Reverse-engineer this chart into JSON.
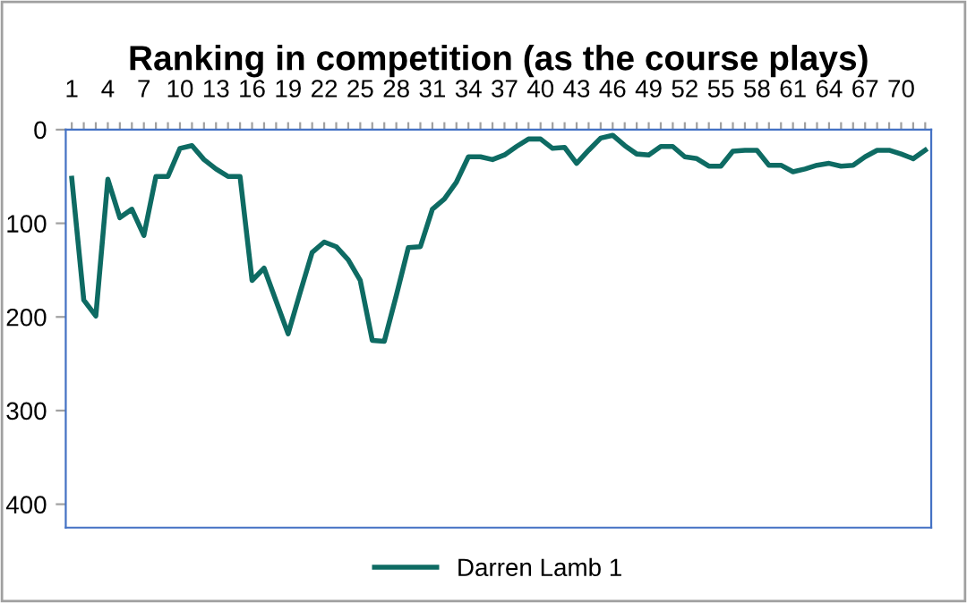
{
  "chart_data": {
    "type": "line",
    "title": "Ranking in competition (as the course plays)",
    "categories": [
      "1",
      null,
      null,
      "4",
      null,
      null,
      "7",
      null,
      null,
      "10",
      null,
      null,
      "13",
      null,
      null,
      "16",
      null,
      null,
      "19",
      null,
      null,
      "22",
      null,
      null,
      "25",
      null,
      null,
      "28",
      null,
      null,
      "31",
      null,
      null,
      "34",
      null,
      null,
      "37",
      null,
      null,
      "40",
      null,
      null,
      "43",
      null,
      null,
      "46",
      null,
      null,
      "49",
      null,
      null,
      "52",
      null,
      null,
      "55",
      null,
      null,
      "58",
      null,
      null,
      "61",
      null,
      null,
      "64",
      null,
      null,
      "67",
      null,
      null,
      "70",
      null,
      null
    ],
    "series": [
      {
        "name": "Darren Lamb 1",
        "color": "#0e6b63",
        "values": [
          52,
          182,
          199,
          53,
          94,
          85,
          113,
          50,
          50,
          20,
          17,
          32,
          42,
          50,
          50,
          161,
          148,
          183,
          218,
          174,
          131,
          120,
          125,
          139,
          161,
          225,
          226,
          177,
          126,
          125,
          85,
          74,
          56,
          29,
          29,
          32,
          27,
          18,
          10,
          10,
          20,
          19,
          36,
          22,
          9,
          6,
          17,
          26,
          27,
          18,
          18,
          29,
          31,
          39,
          39,
          23,
          22,
          22,
          38,
          38,
          45,
          42,
          38,
          36,
          39,
          38,
          29,
          22,
          22,
          26,
          31,
          22
        ]
      }
    ],
    "ylim": [
      425,
      0
    ],
    "yticks": [
      0,
      100,
      200,
      300,
      400
    ],
    "grid": false,
    "legend": "bottom",
    "marker": "none",
    "line_style": "solid"
  }
}
